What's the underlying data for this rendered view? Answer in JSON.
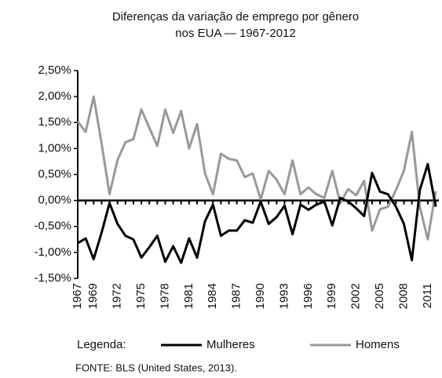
{
  "chart_data": {
    "type": "line",
    "title": [
      "Diferenças da variação de emprego por gênero",
      "nos EUA — 1967-2012"
    ],
    "categories": [
      "1967",
      null,
      "1969",
      null,
      null,
      "1972",
      null,
      null,
      "1975",
      null,
      null,
      "1978",
      null,
      null,
      "1981",
      null,
      null,
      "1984",
      null,
      null,
      "1987",
      null,
      null,
      "1990",
      null,
      null,
      "1993",
      null,
      null,
      "1996",
      null,
      null,
      "1999",
      null,
      null,
      "2002",
      null,
      null,
      "2005",
      null,
      null,
      "2008",
      null,
      null,
      "2011",
      null
    ],
    "series": [
      {
        "name": "Mulheres",
        "color": "#000000",
        "values": [
          -0.82,
          -0.73,
          -1.13,
          -0.62,
          -0.05,
          -0.45,
          -0.68,
          -0.75,
          -1.1,
          -0.9,
          -0.68,
          -1.18,
          -0.88,
          -1.2,
          -0.73,
          -1.1,
          -0.4,
          -0.08,
          -0.68,
          -0.58,
          -0.58,
          -0.38,
          -0.43,
          -0.02,
          -0.45,
          -0.32,
          -0.1,
          -0.65,
          -0.08,
          -0.18,
          -0.08,
          -0.02,
          -0.48,
          0.05,
          -0.02,
          -0.15,
          -0.3,
          0.53,
          0.17,
          0.12,
          -0.12,
          -0.45,
          -1.15,
          0.2,
          0.7,
          -0.12
        ]
      },
      {
        "name": "Homens",
        "color": "#999999",
        "values": [
          1.52,
          1.32,
          2.0,
          1.1,
          0.12,
          0.78,
          1.12,
          1.18,
          1.75,
          1.4,
          1.05,
          1.75,
          1.3,
          1.72,
          1.0,
          1.47,
          0.52,
          0.12,
          0.9,
          0.8,
          0.77,
          0.45,
          0.52,
          0.02,
          0.57,
          0.4,
          0.12,
          0.77,
          0.12,
          0.25,
          0.12,
          0.05,
          0.57,
          -0.05,
          0.22,
          0.1,
          0.38,
          -0.58,
          -0.17,
          -0.12,
          0.2,
          0.57,
          1.32,
          -0.12,
          -0.75,
          0.18
        ]
      }
    ],
    "ylim": [
      -1.5,
      2.5
    ],
    "yticks": [
      {
        "value": -1.5,
        "label": "-1,50%"
      },
      {
        "value": -1.0,
        "label": "-1,00%"
      },
      {
        "value": -0.5,
        "label": "-0,50%"
      },
      {
        "value": 0,
        "label": "0,00%"
      },
      {
        "value": 0.5,
        "label": "0,50%"
      },
      {
        "value": 1.0,
        "label": "1,00%"
      },
      {
        "value": 1.5,
        "label": "1,50%"
      },
      {
        "value": 2.0,
        "label": "2,00%"
      },
      {
        "value": 2.5,
        "label": "2,50%"
      }
    ],
    "legend_title": "Legenda:",
    "source": "FONTE: BLS (United States, 2013)."
  }
}
